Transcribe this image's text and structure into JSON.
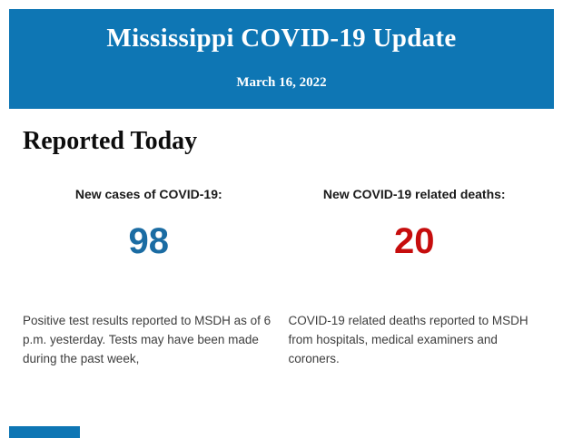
{
  "header": {
    "title": "Mississippi COVID-19 Update",
    "date": "March 16, 2022",
    "bg_color": "#0e76b4"
  },
  "section": {
    "heading": "Reported Today"
  },
  "stats": [
    {
      "label": "New cases of COVID-19:",
      "value": "98",
      "value_color": "#1b6ca3",
      "description": "Positive test results reported to MSDH as of 6 p.m. yesterday. Tests may have been made during the past week,"
    },
    {
      "label": "New COVID-19 related deaths:",
      "value": "20",
      "value_color": "#c60d0d",
      "description": "COVID-19 related deaths reported to MSDH from hospitals, medical examiners and coroners."
    }
  ]
}
